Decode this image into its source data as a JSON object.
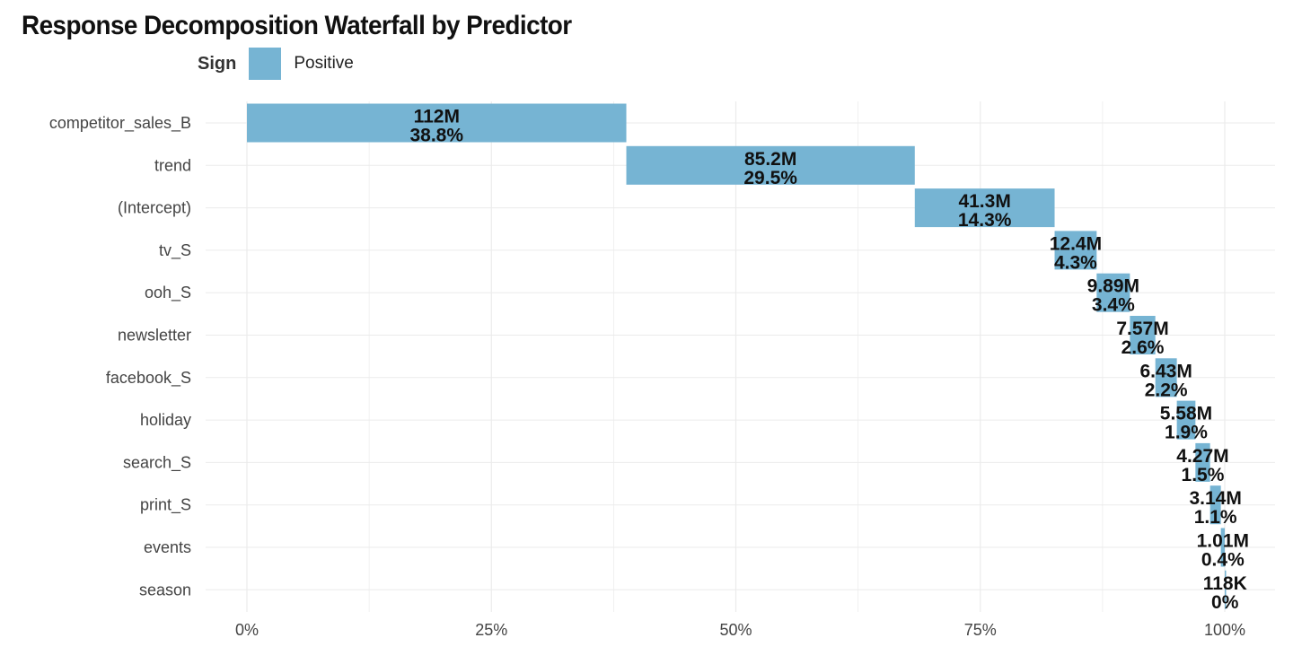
{
  "chart_data": {
    "type": "bar",
    "subtype": "waterfall-horizontal",
    "title": "Response Decomposition Waterfall by Predictor",
    "xlabel": "",
    "ylabel": "",
    "xlim": [
      0,
      1
    ],
    "x_ticks": [
      "0%",
      "25%",
      "50%",
      "75%",
      "100%"
    ],
    "grid": true,
    "legend": {
      "title": "Sign",
      "placement": "top-left",
      "entries": [
        {
          "label": "Positive",
          "color": "#76b4d3"
        }
      ]
    },
    "categories": [
      "competitor_sales_B",
      "trend",
      "(Intercept)",
      "tv_S",
      "ooh_S",
      "newsletter",
      "facebook_S",
      "holiday",
      "search_S",
      "print_S",
      "events",
      "season"
    ],
    "bars": [
      {
        "label": "competitor_sales_B",
        "value": "112M",
        "percent": "38.8%",
        "share": 0.388
      },
      {
        "label": "trend",
        "value": "85.2M",
        "percent": "29.5%",
        "share": 0.295
      },
      {
        "label": "(Intercept)",
        "value": "41.3M",
        "percent": "14.3%",
        "share": 0.143
      },
      {
        "label": "tv_S",
        "value": "12.4M",
        "percent": "4.3%",
        "share": 0.043
      },
      {
        "label": "ooh_S",
        "value": "9.89M",
        "percent": "3.4%",
        "share": 0.034
      },
      {
        "label": "newsletter",
        "value": "7.57M",
        "percent": "2.6%",
        "share": 0.026
      },
      {
        "label": "facebook_S",
        "value": "6.43M",
        "percent": "2.2%",
        "share": 0.022
      },
      {
        "label": "holiday",
        "value": "5.58M",
        "percent": "1.9%",
        "share": 0.019
      },
      {
        "label": "search_S",
        "value": "4.27M",
        "percent": "1.5%",
        "share": 0.015
      },
      {
        "label": "print_S",
        "value": "3.14M",
        "percent": "1.1%",
        "share": 0.011
      },
      {
        "label": "events",
        "value": "1.01M",
        "percent": "0.4%",
        "share": 0.004
      },
      {
        "label": "season",
        "value": "118K",
        "percent": "0%",
        "share": 0.0004
      }
    ],
    "colors": {
      "positive": "#76b4d3",
      "grid": "#ebebeb"
    }
  }
}
